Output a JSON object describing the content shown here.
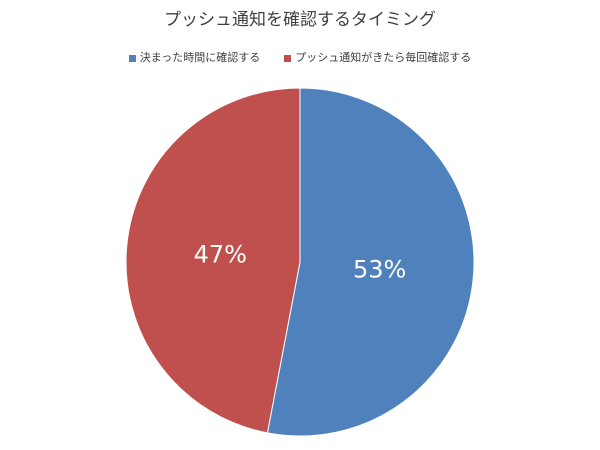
{
  "chart_data": {
    "type": "pie",
    "title": "プッシュ通知を確認するタイミング",
    "categories": [
      "決まった時間に確認する",
      "プッシュ通知がきたら毎回確認する"
    ],
    "values": [
      53,
      47
    ],
    "labels": [
      "53%",
      "47%"
    ],
    "colors": [
      "#4F81BD",
      "#C0504D"
    ],
    "legend_position": "top",
    "start_angle": "12 o'clock",
    "direction": "clockwise"
  }
}
